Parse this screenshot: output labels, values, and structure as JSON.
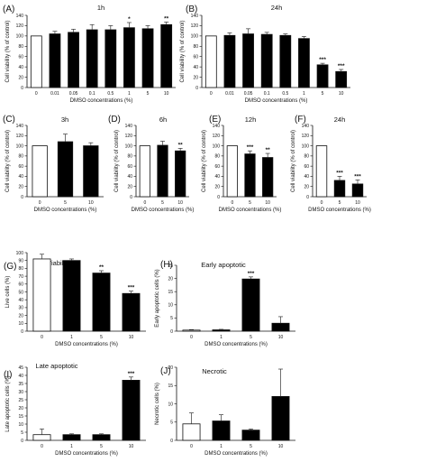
{
  "chart_data": [
    {
      "id": "A",
      "panel_label": "(A)",
      "type": "bar",
      "title": "1h",
      "xlabel": "DMSO concentrations (%)",
      "ylabel": "Cell viability (% of control)",
      "ylim": [
        0,
        140
      ],
      "yticks": [
        "0",
        "20",
        "40",
        "60",
        "80",
        "100",
        "120",
        "140"
      ],
      "ytick_values": [
        0,
        20,
        40,
        60,
        80,
        100,
        120,
        140
      ],
      "categories": [
        "0",
        "0.01",
        "0.05",
        "0.1",
        "0.5",
        "1",
        "5",
        "10"
      ],
      "values": [
        100,
        104,
        107,
        112,
        112,
        116,
        114,
        122
      ],
      "errors": [
        0,
        5,
        6,
        10,
        8,
        10,
        6,
        5
      ],
      "significance": [
        "",
        "",
        "",
        "",
        "",
        "*",
        "",
        "**"
      ],
      "control_bar": "white",
      "treatment_bar": "black"
    },
    {
      "id": "B",
      "panel_label": "(B)",
      "type": "bar",
      "title": "24h",
      "xlabel": "DMSO concentrations (%)",
      "ylabel": "Cell viability (% of control)",
      "ylim": [
        0,
        140
      ],
      "yticks": [
        "0",
        "20",
        "40",
        "60",
        "80",
        "100",
        "120",
        "140"
      ],
      "ytick_values": [
        0,
        20,
        40,
        60,
        80,
        100,
        120,
        140
      ],
      "categories": [
        "0",
        "0.01",
        "0.05",
        "0.1",
        "0.5",
        "1",
        "5",
        "10"
      ],
      "values": [
        100,
        101,
        104,
        103,
        101,
        95,
        44,
        31
      ],
      "errors": [
        0,
        5,
        10,
        4,
        3,
        4,
        3,
        4
      ],
      "significance": [
        "",
        "",
        "",
        "",
        "",
        "",
        "***",
        "***"
      ],
      "control_bar": "white",
      "treatment_bar": "black"
    },
    {
      "id": "C",
      "panel_label": "(C)",
      "type": "bar",
      "title": "3h",
      "xlabel": "DMSO concentrations (%)",
      "ylabel": "Cell viability (% of control)",
      "ylim": [
        0,
        140
      ],
      "yticks": [
        "0",
        "20",
        "40",
        "60",
        "80",
        "100",
        "120",
        "140"
      ],
      "ytick_values": [
        0,
        20,
        40,
        60,
        80,
        100,
        120,
        140
      ],
      "categories": [
        "0",
        "5",
        "10"
      ],
      "values": [
        100,
        108,
        100
      ],
      "errors": [
        0,
        15,
        6
      ],
      "significance": [
        "",
        "",
        ""
      ],
      "control_bar": "white",
      "treatment_bar": "black"
    },
    {
      "id": "D",
      "panel_label": "(D)",
      "type": "bar",
      "title": "6h",
      "xlabel": "DMSO concentrations (%)",
      "ylabel": "Cell viability (% of control)",
      "ylim": [
        0,
        140
      ],
      "yticks": [
        "0",
        "20",
        "40",
        "60",
        "80",
        "100",
        "120",
        "140"
      ],
      "ytick_values": [
        0,
        20,
        40,
        60,
        80,
        100,
        120,
        140
      ],
      "categories": [
        "0",
        "5",
        "10"
      ],
      "values": [
        100,
        101,
        90
      ],
      "errors": [
        0,
        8,
        5
      ],
      "significance": [
        "",
        "",
        "**"
      ],
      "control_bar": "white",
      "treatment_bar": "black"
    },
    {
      "id": "E",
      "panel_label": "(E)",
      "type": "bar",
      "title": "12h",
      "xlabel": "DMSO concentrations (%)",
      "ylabel": "Cell viability (% of control)",
      "ylim": [
        0,
        140
      ],
      "yticks": [
        "0",
        "20",
        "40",
        "60",
        "80",
        "100",
        "120",
        "140"
      ],
      "ytick_values": [
        0,
        20,
        40,
        60,
        80,
        100,
        120,
        140
      ],
      "categories": [
        "0",
        "5",
        "10"
      ],
      "values": [
        100,
        84,
        77
      ],
      "errors": [
        0,
        6,
        8
      ],
      "significance": [
        "",
        "***",
        "**"
      ],
      "control_bar": "white",
      "treatment_bar": "black"
    },
    {
      "id": "F",
      "panel_label": "(F)",
      "type": "bar",
      "title": "24h",
      "xlabel": "DMSO concentrations (%)",
      "ylabel": "Cell viability (% of control)",
      "ylim": [
        0,
        140
      ],
      "yticks": [
        "0",
        "20",
        "40",
        "60",
        "80",
        "100",
        "120",
        "140"
      ],
      "ytick_values": [
        0,
        20,
        40,
        60,
        80,
        100,
        120,
        140
      ],
      "categories": [
        "0",
        "5",
        "10"
      ],
      "values": [
        100,
        32,
        25
      ],
      "errors": [
        0,
        8,
        8
      ],
      "significance": [
        "",
        "***",
        "***"
      ],
      "control_bar": "white",
      "treatment_bar": "black"
    },
    {
      "id": "G",
      "panel_label": "(G)",
      "type": "bar",
      "title": "Viability",
      "xlabel": "DMSO concentrations (%)",
      "ylabel": "Live cells (%)",
      "ylim": [
        0,
        100
      ],
      "yticks": [
        "0",
        "10",
        "20",
        "30",
        "40",
        "50",
        "60",
        "70",
        "80",
        "90",
        "100"
      ],
      "ytick_values": [
        0,
        10,
        20,
        30,
        40,
        50,
        60,
        70,
        80,
        90,
        100
      ],
      "categories": [
        "0",
        "1",
        "5",
        "10"
      ],
      "values": [
        92,
        90,
        74,
        48
      ],
      "errors": [
        6,
        2,
        3,
        3
      ],
      "significance": [
        "",
        "",
        "**",
        "***"
      ],
      "control_bar": "white",
      "treatment_bar": "black"
    },
    {
      "id": "H",
      "panel_label": "(H)",
      "type": "bar",
      "title": "Early apoptotic",
      "xlabel": "DMSO concentrations (%)",
      "ylabel": "Early apoptotic cells (%)",
      "ylim": [
        0,
        25
      ],
      "yticks": [
        "0",
        "5",
        "10",
        "15",
        "20",
        "25"
      ],
      "ytick_values": [
        0,
        5,
        10,
        15,
        20,
        25
      ],
      "categories": [
        "0",
        "1",
        "5",
        "10"
      ],
      "values": [
        0.4,
        0.5,
        19.8,
        3.0
      ],
      "errors": [
        0.2,
        0.2,
        0.8,
        2.5
      ],
      "significance": [
        "",
        "",
        "***",
        ""
      ],
      "control_bar": "white",
      "treatment_bar": "black"
    },
    {
      "id": "I",
      "panel_label": "(I)",
      "type": "bar",
      "title": "Late apoptotic",
      "xlabel": "DMSO concentrations (%)",
      "ylabel": "Late apoptotic cells (%)",
      "ylim": [
        0,
        45
      ],
      "yticks": [
        "0",
        "5",
        "10",
        "15",
        "20",
        "25",
        "30",
        "35",
        "40",
        "45"
      ],
      "ytick_values": [
        0,
        5,
        10,
        15,
        20,
        25,
        30,
        35,
        40,
        45
      ],
      "categories": [
        "0",
        "1",
        "5",
        "10"
      ],
      "values": [
        3.5,
        3.5,
        3.5,
        37
      ],
      "errors": [
        3.5,
        0.5,
        0.5,
        2
      ],
      "significance": [
        "",
        "",
        "",
        "***"
      ],
      "control_bar": "white",
      "treatment_bar": "black"
    },
    {
      "id": "J",
      "panel_label": "(J)",
      "type": "bar",
      "title": "Necrotic",
      "xlabel": "DMSO concentrations (%)",
      "ylabel": "Necrotic cells (%)",
      "ylim": [
        0,
        20
      ],
      "yticks": [
        "0",
        "5",
        "10",
        "15",
        "20"
      ],
      "ytick_values": [
        0,
        5,
        10,
        15,
        20
      ],
      "categories": [
        "0",
        "1",
        "5",
        "10"
      ],
      "values": [
        4.5,
        5.3,
        2.8,
        12
      ],
      "errors": [
        3.0,
        1.7,
        0.3,
        7.5
      ],
      "significance": [
        "",
        "",
        "",
        ""
      ],
      "control_bar": "white",
      "treatment_bar": "black"
    }
  ]
}
